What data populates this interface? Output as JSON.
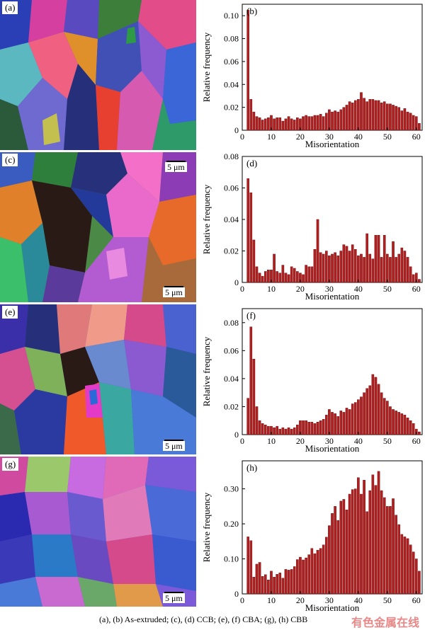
{
  "panels": {
    "a": {
      "label": "(a)"
    },
    "c": {
      "label": "(c)",
      "scale": "5 μm",
      "scale2": "5 μm"
    },
    "e": {
      "label": "(e)",
      "scale": "5 μm"
    },
    "g": {
      "label": "(g)",
      "scale": "5 μm"
    }
  },
  "caption": "(a), (b)  As-extruded; (c), (d) CCB; (e), (f) CBA; (g), (h) CBB",
  "watermark": "有色金属在线",
  "chart_data": [
    {
      "type": "bar",
      "panel": "(b)",
      "xlabel": "Misorientation",
      "ylabel": "Relative frequency",
      "xlim": [
        0,
        62
      ],
      "ylim": [
        0,
        0.11
      ],
      "xticks": [
        0,
        10,
        20,
        30,
        40,
        50,
        60
      ],
      "yticks": [
        0,
        0.02,
        0.04,
        0.06,
        0.08,
        0.1
      ],
      "ytick_labels": [
        "0",
        "0.02",
        "0.04",
        "0.06",
        "0.08",
        "0.10"
      ],
      "color": "#b41e1e",
      "x": [
        2,
        3,
        4,
        5,
        6,
        7,
        8,
        9,
        10,
        11,
        12,
        13,
        14,
        15,
        16,
        17,
        18,
        19,
        20,
        21,
        22,
        23,
        24,
        25,
        26,
        27,
        28,
        29,
        30,
        31,
        32,
        33,
        34,
        35,
        36,
        37,
        38,
        39,
        40,
        41,
        42,
        43,
        44,
        45,
        46,
        47,
        48,
        49,
        50,
        51,
        52,
        53,
        54,
        55,
        56,
        57,
        58,
        59,
        60,
        61
      ],
      "values": [
        0.105,
        0.027,
        0.016,
        0.012,
        0.011,
        0.009,
        0.01,
        0.011,
        0.013,
        0.01,
        0.011,
        0.011,
        0.008,
        0.01,
        0.012,
        0.01,
        0.009,
        0.011,
        0.01,
        0.012,
        0.013,
        0.012,
        0.012,
        0.013,
        0.013,
        0.014,
        0.012,
        0.015,
        0.018,
        0.016,
        0.017,
        0.016,
        0.018,
        0.02,
        0.022,
        0.025,
        0.024,
        0.026,
        0.027,
        0.033,
        0.028,
        0.025,
        0.027,
        0.027,
        0.026,
        0.026,
        0.024,
        0.025,
        0.023,
        0.023,
        0.022,
        0.021,
        0.02,
        0.017,
        0.019,
        0.016,
        0.015,
        0.013,
        0.012,
        0.006
      ]
    },
    {
      "type": "bar",
      "panel": "(d)",
      "xlabel": "Misorientation",
      "ylabel": "Relative frequency",
      "xlim": [
        0,
        62
      ],
      "ylim": [
        0,
        0.08
      ],
      "xticks": [
        0,
        10,
        20,
        30,
        40,
        50,
        60
      ],
      "yticks": [
        0,
        0.02,
        0.04,
        0.06,
        0.08
      ],
      "ytick_labels": [
        "0",
        "0.02",
        "0.04",
        "0.06",
        "0.08"
      ],
      "color": "#b41e1e",
      "x": [
        2,
        3,
        4,
        5,
        6,
        7,
        8,
        9,
        10,
        11,
        12,
        13,
        14,
        15,
        16,
        17,
        18,
        19,
        20,
        21,
        22,
        23,
        24,
        25,
        26,
        27,
        28,
        29,
        30,
        31,
        32,
        33,
        34,
        35,
        36,
        37,
        38,
        39,
        40,
        41,
        42,
        43,
        44,
        45,
        46,
        47,
        48,
        49,
        50,
        51,
        52,
        53,
        54,
        55,
        56,
        57,
        58,
        59,
        60,
        61
      ],
      "values": [
        0.066,
        0.057,
        0.027,
        0.01,
        0.006,
        0.004,
        0.007,
        0.008,
        0.008,
        0.018,
        0.007,
        0.006,
        0.011,
        0.006,
        0.005,
        0.01,
        0.009,
        0.007,
        0.006,
        0.005,
        0.011,
        0.01,
        0.01,
        0.021,
        0.04,
        0.019,
        0.018,
        0.02,
        0.017,
        0.018,
        0.019,
        0.017,
        0.02,
        0.024,
        0.023,
        0.02,
        0.024,
        0.021,
        0.017,
        0.018,
        0.016,
        0.031,
        0.018,
        0.015,
        0.03,
        0.03,
        0.016,
        0.03,
        0.018,
        0.016,
        0.026,
        0.016,
        0.018,
        0.022,
        0.02,
        0.016,
        0.01,
        0.005,
        0.006,
        0.002
      ]
    },
    {
      "type": "bar",
      "panel": "(f)",
      "xlabel": "Misorientation",
      "ylabel": "Relative frequency",
      "xlim": [
        0,
        62
      ],
      "ylim": [
        0,
        0.09
      ],
      "xticks": [
        0,
        10,
        20,
        30,
        40,
        50,
        60
      ],
      "yticks": [
        0,
        0.02,
        0.04,
        0.06,
        0.08
      ],
      "ytick_labels": [
        "0",
        "0.02",
        "0.04",
        "0.06",
        "0.08"
      ],
      "color": "#b41e1e",
      "x": [
        2,
        3,
        4,
        5,
        6,
        7,
        8,
        9,
        10,
        11,
        12,
        13,
        14,
        15,
        16,
        17,
        18,
        19,
        20,
        21,
        22,
        23,
        24,
        25,
        26,
        27,
        28,
        29,
        30,
        31,
        32,
        33,
        34,
        35,
        36,
        37,
        38,
        39,
        40,
        41,
        42,
        43,
        44,
        45,
        46,
        47,
        48,
        49,
        50,
        51,
        52,
        53,
        54,
        55,
        56,
        57,
        58,
        59,
        60,
        61
      ],
      "values": [
        0.026,
        0.077,
        0.054,
        0.02,
        0.01,
        0.008,
        0.007,
        0.006,
        0.006,
        0.005,
        0.006,
        0.004,
        0.005,
        0.004,
        0.005,
        0.004,
        0.005,
        0.007,
        0.01,
        0.01,
        0.01,
        0.009,
        0.009,
        0.008,
        0.009,
        0.01,
        0.011,
        0.014,
        0.018,
        0.016,
        0.015,
        0.013,
        0.017,
        0.016,
        0.019,
        0.018,
        0.022,
        0.023,
        0.025,
        0.027,
        0.03,
        0.033,
        0.035,
        0.043,
        0.041,
        0.036,
        0.03,
        0.026,
        0.024,
        0.02,
        0.018,
        0.017,
        0.016,
        0.015,
        0.014,
        0.012,
        0.01,
        0.008,
        0.004,
        0.002
      ]
    },
    {
      "type": "bar",
      "panel": "(h)",
      "xlabel": "Misorientation",
      "ylabel": "Relative frequency",
      "xlim": [
        0,
        62
      ],
      "ylim": [
        0,
        0.38
      ],
      "xticks": [
        0,
        10,
        20,
        30,
        40,
        50,
        60
      ],
      "yticks": [
        0,
        0.1,
        0.2,
        0.3
      ],
      "ytick_labels": [
        "0",
        "0.10",
        "0.20",
        "0.30"
      ],
      "color": "#b41e1e",
      "x": [
        2,
        3,
        4,
        5,
        6,
        7,
        8,
        9,
        10,
        11,
        12,
        13,
        14,
        15,
        16,
        17,
        18,
        19,
        20,
        21,
        22,
        23,
        24,
        25,
        26,
        27,
        28,
        29,
        30,
        31,
        32,
        33,
        34,
        35,
        36,
        37,
        38,
        39,
        40,
        41,
        42,
        43,
        44,
        45,
        46,
        47,
        48,
        49,
        50,
        51,
        52,
        53,
        54,
        55,
        56,
        57,
        58,
        59,
        60,
        61
      ],
      "values": [
        0.163,
        0.152,
        0.048,
        0.085,
        0.09,
        0.05,
        0.055,
        0.04,
        0.065,
        0.048,
        0.056,
        0.06,
        0.045,
        0.07,
        0.068,
        0.07,
        0.078,
        0.098,
        0.105,
        0.097,
        0.103,
        0.112,
        0.13,
        0.115,
        0.125,
        0.13,
        0.14,
        0.162,
        0.195,
        0.23,
        0.25,
        0.21,
        0.265,
        0.27,
        0.24,
        0.285,
        0.298,
        0.3,
        0.332,
        0.285,
        0.325,
        0.235,
        0.295,
        0.34,
        0.31,
        0.35,
        0.295,
        0.275,
        0.25,
        0.25,
        0.272,
        0.225,
        0.198,
        0.17,
        0.163,
        0.158,
        0.14,
        0.12,
        0.1,
        0.065
      ]
    }
  ]
}
